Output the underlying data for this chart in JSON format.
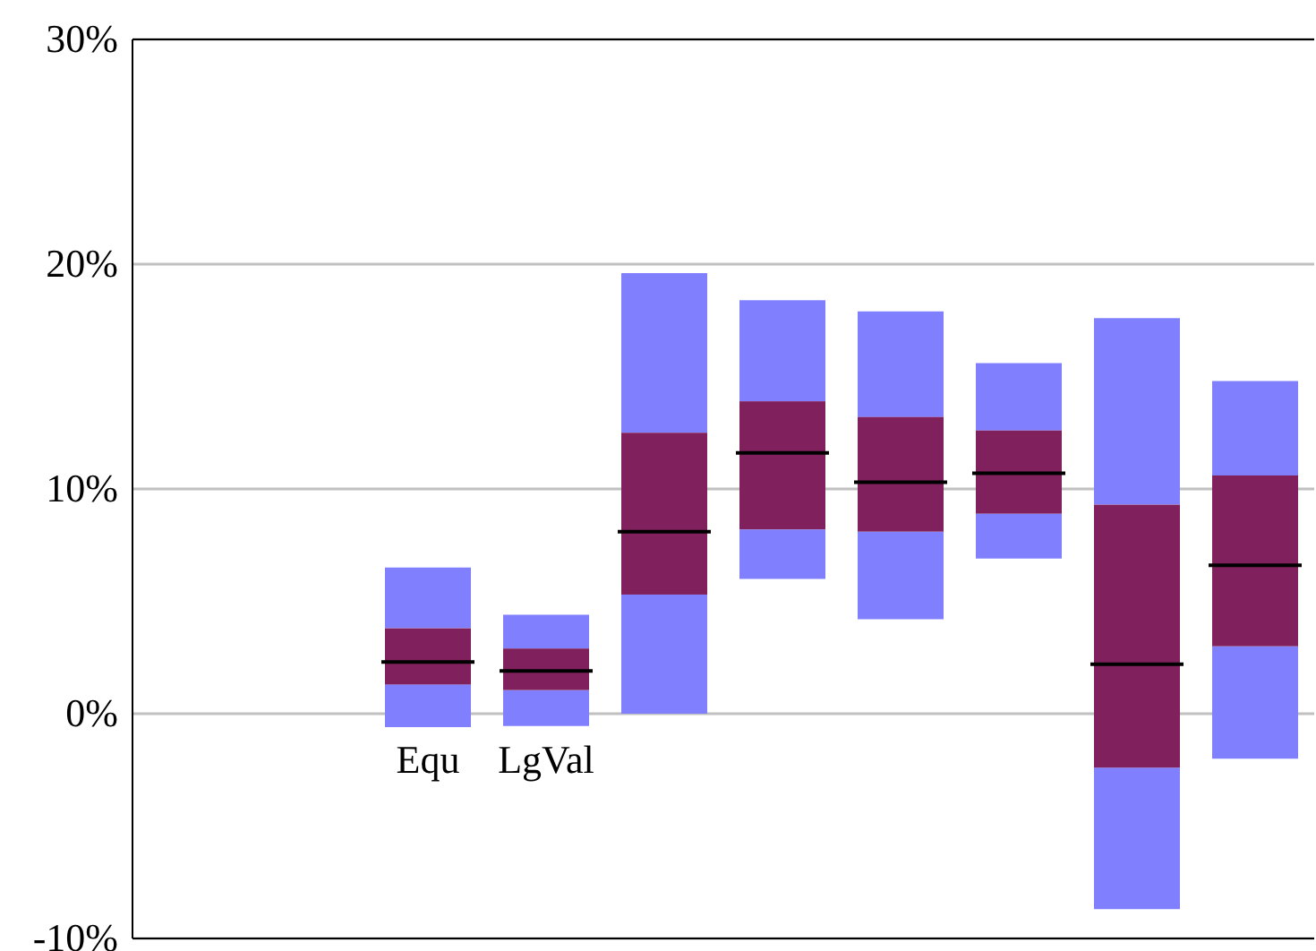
{
  "chart_data": {
    "type": "box",
    "categories": [
      null,
      null,
      "Equ",
      "LgVal",
      null,
      null,
      null,
      null,
      null,
      null
    ],
    "boxes": [
      null,
      null,
      {
        "low": -0.6,
        "q1": 1.3,
        "median": 2.3,
        "q3": 3.8,
        "high": 6.5
      },
      {
        "low": -0.55,
        "q1": 1.05,
        "median": 1.9,
        "q3": 2.9,
        "high": 4.4
      },
      {
        "low": 0,
        "q1": 5.3,
        "median": 8.1,
        "q3": 12.5,
        "high": 19.6
      },
      {
        "low": 6.0,
        "q1": 8.2,
        "median": 11.6,
        "q3": 13.9,
        "high": 18.4
      },
      {
        "low": 4.2,
        "q1": 8.1,
        "median": 10.3,
        "q3": 13.2,
        "high": 17.9
      },
      {
        "low": 6.9,
        "q1": 8.9,
        "median": 10.7,
        "q3": 12.6,
        "high": 15.6
      },
      {
        "low": -8.7,
        "q1": -2.4,
        "median": 2.2,
        "q3": 9.3,
        "high": 17.6
      },
      {
        "low": -2.0,
        "q1": 3.0,
        "median": 6.6,
        "q3": 10.6,
        "high": 14.8
      }
    ],
    "color": "#80215d",
    "ylim": [
      -10,
      30
    ],
    "yticks": [
      {
        "value": -10,
        "label": "-10%"
      },
      {
        "value": 0,
        "label": "0%"
      },
      {
        "value": 10,
        "label": "10%"
      },
      {
        "value": 20,
        "label": "20%"
      },
      {
        "value": 30,
        "label": "30%"
      }
    ],
    "grid": "y"
  }
}
